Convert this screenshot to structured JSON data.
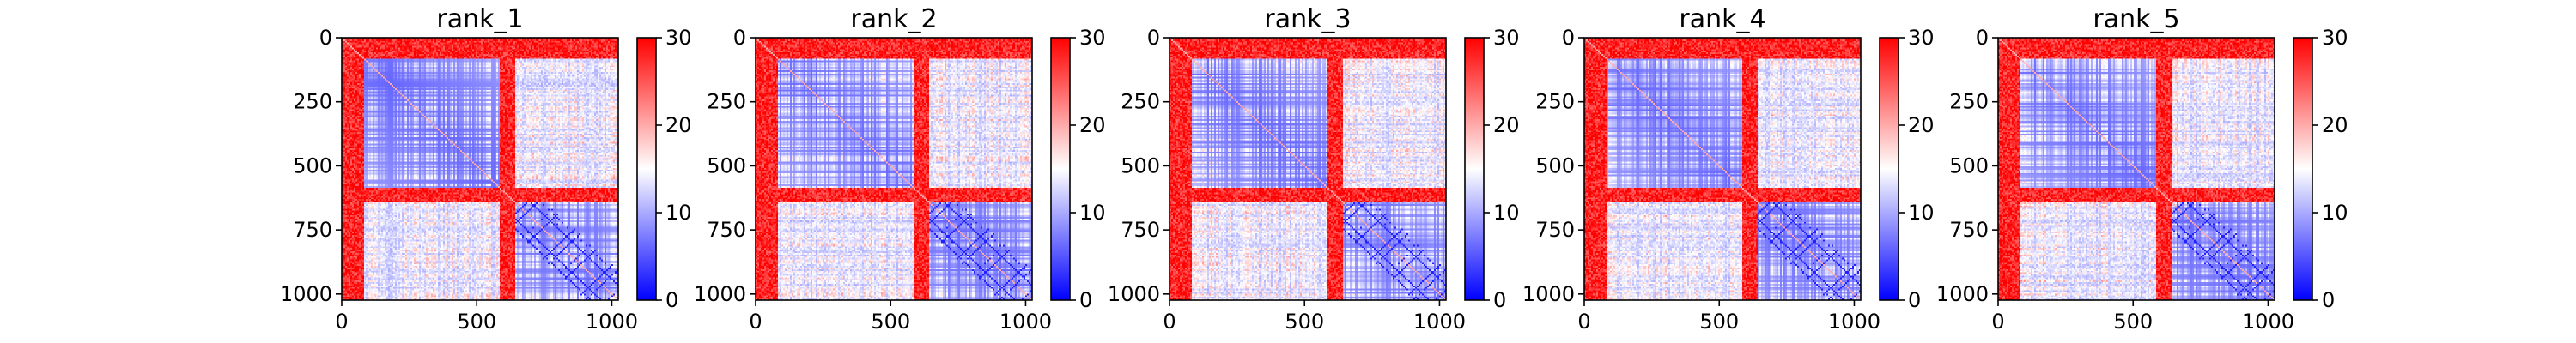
{
  "chart_data": {
    "type": "heatmap",
    "colormap": "bwr",
    "colors": {
      "low": "#0000ff",
      "mid": "#ffffff",
      "high": "#ff0000"
    },
    "matrix_size": 1024,
    "xticks": [
      "0",
      "500",
      "1000"
    ],
    "xtick_values": [
      0,
      500,
      1000
    ],
    "yticks": [
      "0",
      "250",
      "500",
      "750",
      "1000"
    ],
    "ytick_values": [
      0,
      250,
      500,
      750,
      1000
    ],
    "colorbar": {
      "range": [
        0,
        30
      ],
      "ticks": [
        "0",
        "10",
        "20",
        "30"
      ],
      "tick_values": [
        0,
        10,
        20,
        30
      ]
    },
    "panels": [
      {
        "title": "rank_1"
      },
      {
        "title": "rank_2"
      },
      {
        "title": "rank_3"
      },
      {
        "title": "rank_4"
      },
      {
        "title": "rank_5"
      }
    ],
    "segments": [
      {
        "start": 0,
        "end": 80,
        "intra": "high"
      },
      {
        "start": 80,
        "end": 580,
        "intra": "low"
      },
      {
        "start": 580,
        "end": 640,
        "intra": "high"
      },
      {
        "start": 640,
        "end": 1024,
        "intra": "low"
      }
    ]
  }
}
